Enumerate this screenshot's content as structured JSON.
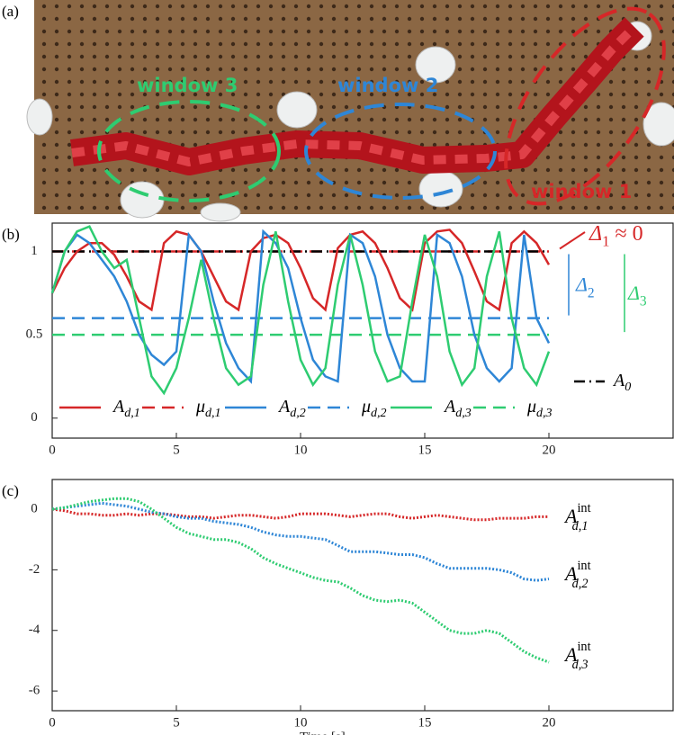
{
  "panel_a": {
    "label": "(a)",
    "windows": [
      {
        "label": "window 1",
        "color": "#d62728"
      },
      {
        "label": "window 2",
        "color": "#2e86d6"
      },
      {
        "label": "window 3",
        "color": "#2ecc71"
      }
    ]
  },
  "chart_data": [
    {
      "type": "line",
      "panel_label": "(b)",
      "x": [
        0,
        0.5,
        1,
        1.5,
        2,
        2.5,
        3,
        3.5,
        4,
        4.5,
        5,
        5.5,
        6,
        6.5,
        7,
        7.5,
        8,
        8.5,
        9,
        9.5,
        10,
        10.5,
        11,
        11.5,
        12,
        12.5,
        13,
        13.5,
        14,
        14.5,
        15,
        15.5,
        16,
        16.5,
        17,
        17.5,
        18,
        18.5,
        19,
        19.5,
        20
      ],
      "xlim": [
        0,
        25
      ],
      "xticks": [
        0,
        5,
        10,
        15,
        20
      ],
      "ylim": [
        -0.12,
        1.17
      ],
      "yticks": [
        0,
        0.5,
        1
      ],
      "series": [
        {
          "name": "A",
          "sub": "d,1",
          "color": "#d62728",
          "linestyle": "solid",
          "values": [
            0.75,
            0.9,
            1.0,
            1.05,
            1.05,
            0.98,
            0.85,
            0.7,
            0.65,
            1.05,
            1.12,
            1.1,
            1.0,
            0.85,
            0.7,
            0.65,
            1.0,
            1.08,
            1.1,
            1.05,
            0.9,
            0.72,
            0.65,
            1.02,
            1.1,
            1.12,
            1.05,
            0.9,
            0.72,
            0.65,
            1.05,
            1.12,
            1.13,
            1.05,
            0.88,
            0.7,
            0.65,
            1.05,
            1.12,
            1.05,
            0.92
          ]
        },
        {
          "name": "A",
          "sub": "d,2",
          "color": "#2e86d6",
          "linestyle": "solid",
          "values": [
            0.75,
            1.0,
            1.1,
            1.05,
            0.95,
            0.85,
            0.7,
            0.5,
            0.38,
            0.32,
            0.4,
            1.1,
            1.0,
            0.7,
            0.45,
            0.3,
            0.22,
            1.12,
            1.05,
            0.9,
            0.6,
            0.35,
            0.25,
            0.22,
            1.1,
            1.05,
            0.85,
            0.5,
            0.3,
            0.22,
            0.22,
            1.1,
            1.05,
            0.85,
            0.5,
            0.3,
            0.22,
            0.3,
            1.1,
            0.6,
            0.45
          ]
        },
        {
          "name": "A",
          "sub": "d,3",
          "color": "#2ecc71",
          "linestyle": "solid",
          "values": [
            0.75,
            1.0,
            1.12,
            1.15,
            1.0,
            0.9,
            0.95,
            0.6,
            0.25,
            0.15,
            0.3,
            0.6,
            0.95,
            0.6,
            0.3,
            0.2,
            0.25,
            0.8,
            1.12,
            0.7,
            0.35,
            0.2,
            0.3,
            0.8,
            1.1,
            0.8,
            0.4,
            0.22,
            0.25,
            0.7,
            1.1,
            0.85,
            0.4,
            0.2,
            0.3,
            0.85,
            1.12,
            0.6,
            0.3,
            0.2,
            0.4
          ]
        }
      ],
      "reference_lines": [
        {
          "name": "μ",
          "sub": "d,1",
          "color": "#d62728",
          "linestyle": "dashed",
          "value": 1
        },
        {
          "name": "μ",
          "sub": "d,2",
          "color": "#2e86d6",
          "linestyle": "dashed",
          "value": 0.6
        },
        {
          "name": "μ",
          "sub": "d,3",
          "color": "#2ecc71",
          "linestyle": "dashed",
          "value": 0.5
        },
        {
          "name": "A",
          "sub": "0",
          "color": "#000000",
          "linestyle": "dashdot",
          "value": 1
        }
      ],
      "annotations": [
        {
          "text": "Δ",
          "sub": "1",
          "rest": " ≈ 0",
          "color": "#d62728"
        },
        {
          "text": "Δ",
          "sub": "2",
          "color": "#2e86d6"
        },
        {
          "text": "Δ",
          "sub": "3",
          "color": "#2ecc71"
        }
      ]
    },
    {
      "type": "line",
      "panel_label": "(c)",
      "xlabel": "Time [s]",
      "x": [
        0,
        0.5,
        1,
        1.5,
        2,
        2.5,
        3,
        3.5,
        4,
        4.5,
        5,
        5.5,
        6,
        6.5,
        7,
        7.5,
        8,
        8.5,
        9,
        9.5,
        10,
        10.5,
        11,
        11.5,
        12,
        12.5,
        13,
        13.5,
        14,
        14.5,
        15,
        15.5,
        16,
        16.5,
        17,
        17.5,
        18,
        18.5,
        19,
        19.5,
        20
      ],
      "xlim": [
        0,
        25
      ],
      "xticks": [
        0,
        5,
        10,
        15,
        20
      ],
      "ylim": [
        -6.65,
        0.98
      ],
      "yticks": [
        -6,
        -4,
        -2,
        0
      ],
      "series": [
        {
          "name": "A",
          "sub": "d,1",
          "sup": "int",
          "color": "#d62728",
          "linestyle": "dotted",
          "values": [
            0,
            -0.05,
            -0.15,
            -0.15,
            -0.2,
            -0.2,
            -0.15,
            -0.2,
            -0.15,
            -0.15,
            -0.2,
            -0.25,
            -0.25,
            -0.3,
            -0.25,
            -0.2,
            -0.2,
            -0.25,
            -0.3,
            -0.25,
            -0.15,
            -0.15,
            -0.15,
            -0.2,
            -0.25,
            -0.2,
            -0.15,
            -0.15,
            -0.25,
            -0.3,
            -0.25,
            -0.2,
            -0.25,
            -0.3,
            -0.35,
            -0.35,
            -0.3,
            -0.3,
            -0.3,
            -0.25,
            -0.25
          ]
        },
        {
          "name": "A",
          "sub": "d,2",
          "sup": "int",
          "color": "#2e86d6",
          "linestyle": "dotted",
          "values": [
            0,
            0.05,
            0.1,
            0.15,
            0.2,
            0.15,
            0.1,
            0.0,
            -0.1,
            -0.15,
            -0.25,
            -0.3,
            -0.3,
            -0.4,
            -0.45,
            -0.5,
            -0.6,
            -0.75,
            -0.85,
            -0.9,
            -0.9,
            -0.95,
            -1.0,
            -1.2,
            -1.4,
            -1.4,
            -1.4,
            -1.45,
            -1.5,
            -1.5,
            -1.6,
            -1.8,
            -1.95,
            -1.95,
            -1.95,
            -1.95,
            -2.0,
            -2.1,
            -2.3,
            -2.35,
            -2.3
          ]
        },
        {
          "name": "A",
          "sub": "d,3",
          "sup": "int",
          "color": "#2ecc71",
          "linestyle": "dotted",
          "values": [
            0,
            0.05,
            0.15,
            0.25,
            0.3,
            0.35,
            0.35,
            0.25,
            0.0,
            -0.3,
            -0.6,
            -0.8,
            -0.9,
            -1.0,
            -1.0,
            -1.1,
            -1.3,
            -1.6,
            -1.8,
            -1.95,
            -2.1,
            -2.25,
            -2.35,
            -2.4,
            -2.6,
            -2.85,
            -3.0,
            -3.05,
            -3.0,
            -3.1,
            -3.4,
            -3.7,
            -4.0,
            -4.1,
            -4.1,
            -4.0,
            -4.1,
            -4.4,
            -4.7,
            -4.9,
            -5.05
          ]
        }
      ]
    }
  ]
}
